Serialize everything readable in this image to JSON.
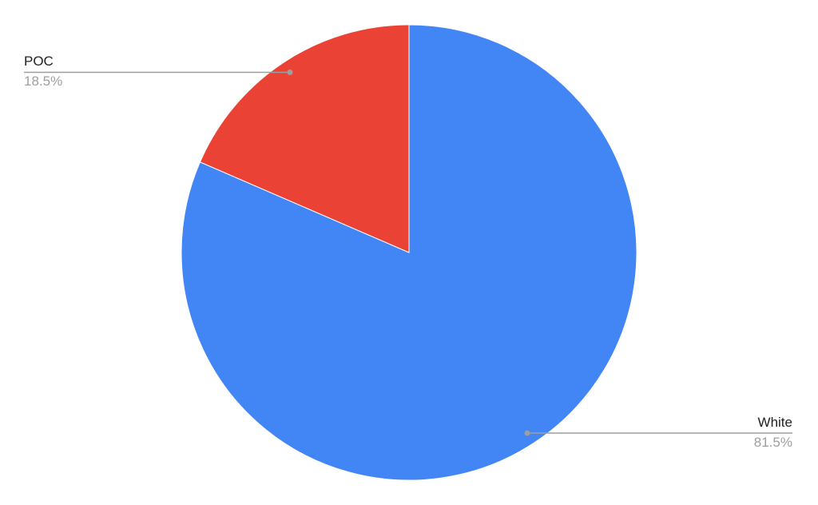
{
  "chart_data": {
    "type": "pie",
    "title": "",
    "start_angle_deg": 0,
    "direction": "clockwise",
    "slices": [
      {
        "label": "White",
        "value": 81.5,
        "percent_label": "81.5%",
        "color": "#4285f4"
      },
      {
        "label": "POC",
        "value": 18.5,
        "percent_label": "18.5%",
        "color": "#ea4335"
      }
    ],
    "legend": "none",
    "label_style": "leader-lines",
    "leader_line_color": "#9e9e9e"
  }
}
